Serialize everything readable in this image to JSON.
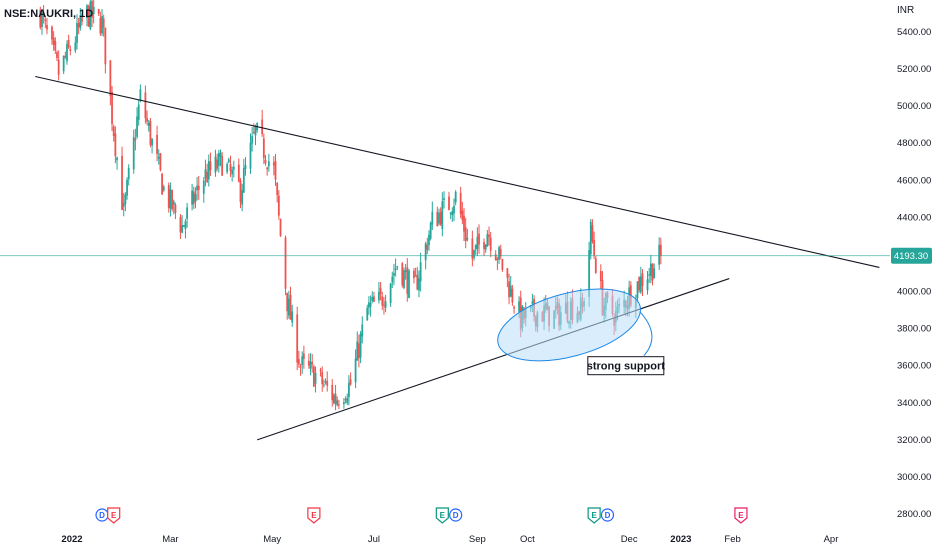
{
  "header": {
    "symbol": "NSE:NAUKRI, 1D",
    "currency": "INR"
  },
  "colors": {
    "up": "#26a69a",
    "down": "#ef5350",
    "trendline": "#131722",
    "last_price_line": "#26a69a",
    "ellipse_fill": "#bbdefb",
    "ellipse_stroke": "#1e88e5"
  },
  "chart_data": {
    "type": "candlestick",
    "title": "",
    "price_scale": "right",
    "ylim": [
      2800,
      5550
    ],
    "y_ticks": [
      2800,
      3000,
      3200,
      3400,
      3600,
      3800,
      4000,
      4200,
      4400,
      4600,
      4800,
      5000,
      5200,
      5400
    ],
    "y_tick_labels": [
      "2800.00",
      "3000.00",
      "3200.00",
      "3400.00",
      "3600.00",
      "3800.00",
      "4000.00",
      "4200.00",
      "4400.00",
      "4600.00",
      "4800.00",
      "5000.00",
      "5200.00",
      "5400.00"
    ],
    "xlim": [
      "2021-12-10",
      "2023-04-20"
    ],
    "x_ticks": [
      {
        "date": "2022-01-01",
        "label": "2022"
      },
      {
        "date": "2022-03-01",
        "label": "Mar"
      },
      {
        "date": "2022-05-01",
        "label": "May"
      },
      {
        "date": "2022-07-01",
        "label": "Jul"
      },
      {
        "date": "2022-09-01",
        "label": "Sep"
      },
      {
        "date": "2022-10-01",
        "label": "Oct"
      },
      {
        "date": "2022-12-01",
        "label": "Dec"
      },
      {
        "date": "2023-01-01",
        "label": "2023"
      },
      {
        "date": "2023-02-01",
        "label": "Feb"
      },
      {
        "date": "2023-04-01",
        "label": "Apr"
      }
    ],
    "last_price": 4193.3,
    "last_price_label": "4193.30",
    "approx_close_path": [
      {
        "date": "2021-12-13",
        "close": 5500
      },
      {
        "date": "2021-12-24",
        "close": 5180
      },
      {
        "date": "2022-01-10",
        "close": 5500
      },
      {
        "date": "2022-01-19",
        "close": 5450
      },
      {
        "date": "2022-01-25",
        "close": 4950
      },
      {
        "date": "2022-02-01",
        "close": 4420
      },
      {
        "date": "2022-02-11",
        "close": 5050
      },
      {
        "date": "2022-02-25",
        "close": 4550
      },
      {
        "date": "2022-03-08",
        "close": 4350
      },
      {
        "date": "2022-03-21",
        "close": 4620
      },
      {
        "date": "2022-04-01",
        "close": 4700
      },
      {
        "date": "2022-04-12",
        "close": 4550
      },
      {
        "date": "2022-04-21",
        "close": 4860
      },
      {
        "date": "2022-05-02",
        "close": 4650
      },
      {
        "date": "2022-05-10",
        "close": 3950
      },
      {
        "date": "2022-05-18",
        "close": 3600
      },
      {
        "date": "2022-05-27",
        "close": 3550
      },
      {
        "date": "2022-06-08",
        "close": 3420
      },
      {
        "date": "2022-06-17",
        "close": 3500
      },
      {
        "date": "2022-06-27",
        "close": 3900
      },
      {
        "date": "2022-07-05",
        "close": 3950
      },
      {
        "date": "2022-07-15",
        "close": 4150
      },
      {
        "date": "2022-07-25",
        "close": 4000
      },
      {
        "date": "2022-08-05",
        "close": 4380
      },
      {
        "date": "2022-08-19",
        "close": 4510
      },
      {
        "date": "2022-08-29",
        "close": 4180
      },
      {
        "date": "2022-09-07",
        "close": 4330
      },
      {
        "date": "2022-09-15",
        "close": 4160
      },
      {
        "date": "2022-09-27",
        "close": 3850
      },
      {
        "date": "2022-10-07",
        "close": 3890
      },
      {
        "date": "2022-10-18",
        "close": 3870
      },
      {
        "date": "2022-10-27",
        "close": 3920
      },
      {
        "date": "2022-11-03",
        "close": 3900
      },
      {
        "date": "2022-11-08",
        "close": 4320
      },
      {
        "date": "2022-11-15",
        "close": 3940
      },
      {
        "date": "2022-11-23",
        "close": 3870
      },
      {
        "date": "2022-12-02",
        "close": 4000
      },
      {
        "date": "2022-12-12",
        "close": 4100
      },
      {
        "date": "2022-12-20",
        "close": 4193.3
      }
    ],
    "trendlines": [
      {
        "name": "Falling resistance",
        "from": {
          "date": "2021-12-10",
          "price": 5160
        },
        "to": {
          "date": "2023-04-30",
          "price": 4130
        }
      },
      {
        "name": "Rising support",
        "from": {
          "date": "2022-04-22",
          "price": 3200
        },
        "to": {
          "date": "2023-01-30",
          "price": 4070
        }
      }
    ],
    "highlight_zone": {
      "type": "ellipse",
      "center_date": "2022-10-26",
      "center_price": 3820,
      "rx_days": 44,
      "ry_price": 170,
      "rotation": -15
    },
    "annotations": [
      {
        "text": "strong support",
        "date": "2022-11-29",
        "price": 3600
      }
    ],
    "events": [
      {
        "date": "2022-01-19",
        "letters": "D",
        "color": "#2962ff"
      },
      {
        "date": "2022-01-26",
        "letters": "E",
        "color": "#f23645"
      },
      {
        "date": "2022-05-26",
        "letters": "E",
        "color": "#f23645"
      },
      {
        "date": "2022-08-11",
        "letters": "E",
        "color": "#089981"
      },
      {
        "date": "2022-08-19",
        "letters": "D",
        "color": "#2962ff"
      },
      {
        "date": "2022-11-10",
        "letters": "E",
        "color": "#089981"
      },
      {
        "date": "2022-11-18",
        "letters": "D",
        "color": "#2962ff"
      },
      {
        "date": "2023-02-06",
        "letters": "E",
        "color": "#e91e63"
      }
    ]
  }
}
